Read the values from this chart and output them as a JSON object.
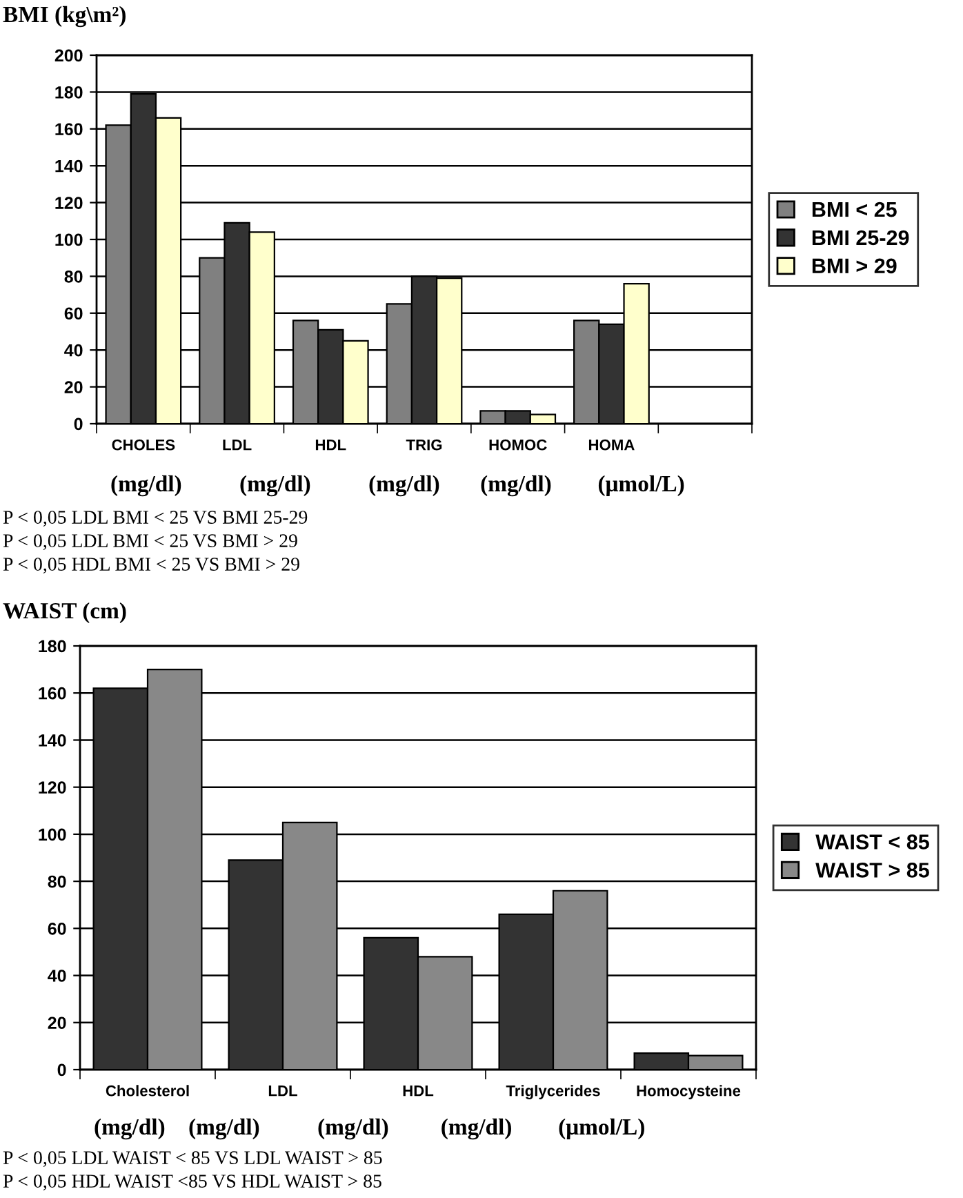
{
  "chart_data": [
    {
      "type": "bar",
      "title": "BMI (kg\\m²)",
      "categories": [
        "CHOLES",
        "LDL",
        "HDL",
        "TRIG",
        "HOMOC",
        "HOMA",
        null
      ],
      "series": [
        {
          "name": "BMI < 25",
          "color": "#808080",
          "values": [
            162,
            90,
            56,
            65,
            7,
            56,
            null
          ]
        },
        {
          "name": "BMI 25-29",
          "color": "#333333",
          "values": [
            179,
            109,
            51,
            80,
            7,
            54,
            null
          ]
        },
        {
          "name": "BMI > 29",
          "color": "#ffffcc",
          "values": [
            166,
            104,
            45,
            79,
            5,
            76,
            null
          ]
        }
      ],
      "xlabel": "(mg/dl)          (mg/dl)          (mg/dl)       (mg/dl)        (μmol/L)",
      "ylim": [
        0,
        200
      ],
      "yticks": [
        0,
        20,
        40,
        60,
        80,
        100,
        120,
        140,
        160,
        180,
        200
      ],
      "grid": "y",
      "legend": "right",
      "annotations": [
        "P < 0,05 LDL BMI < 25 VS BMI 25-29",
        "P < 0,05 LDL BMI < 25 VS BMI > 29",
        "P < 0,05 HDL BMI < 25 VS BMI > 29"
      ]
    },
    {
      "type": "bar",
      "title": "WAIST (cm)",
      "categories": [
        "Cholesterol",
        "LDL",
        "HDL",
        "Triglycerides",
        "Homocysteine"
      ],
      "series": [
        {
          "name": "WAIST < 85",
          "color": "#333333",
          "values": [
            162,
            89,
            56,
            66,
            7
          ]
        },
        {
          "name": "WAIST > 85",
          "color": "#888888",
          "values": [
            170,
            105,
            48,
            76,
            6
          ]
        }
      ],
      "xlabel": "(mg/dl)    (mg/dl)          (mg/dl)         (mg/dl)        (μmol/L)",
      "ylim": [
        0,
        180
      ],
      "yticks": [
        0,
        20,
        40,
        60,
        80,
        100,
        120,
        140,
        160,
        180
      ],
      "grid": "y",
      "legend": "right",
      "annotations": [
        "P < 0,05 LDL WAIST < 85 VS LDL WAIST > 85",
        "P < 0,05 HDL WAIST <85 VS HDL WAIST > 85"
      ]
    }
  ]
}
